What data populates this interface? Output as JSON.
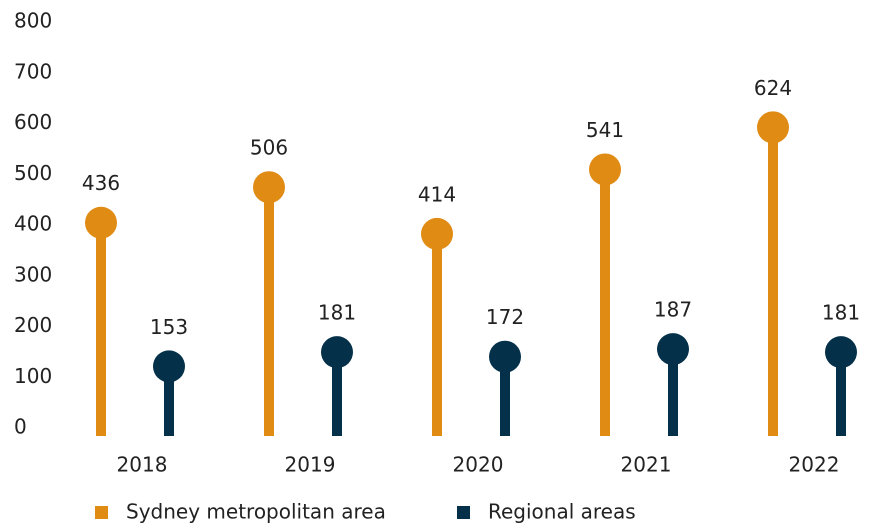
{
  "chart_data": {
    "type": "lollipop",
    "categories": [
      "2018",
      "2019",
      "2020",
      "2021",
      "2022"
    ],
    "series": [
      {
        "name": "Sydney metropolitan area",
        "color": "#e08b14",
        "values": [
          436,
          506,
          414,
          541,
          624
        ]
      },
      {
        "name": "Regional areas",
        "color": "#05304a",
        "values": [
          153,
          181,
          172,
          187,
          181
        ]
      }
    ],
    "ylim": [
      0,
      800
    ],
    "yticks": [
      0,
      100,
      200,
      300,
      400,
      500,
      600,
      700,
      800
    ]
  }
}
